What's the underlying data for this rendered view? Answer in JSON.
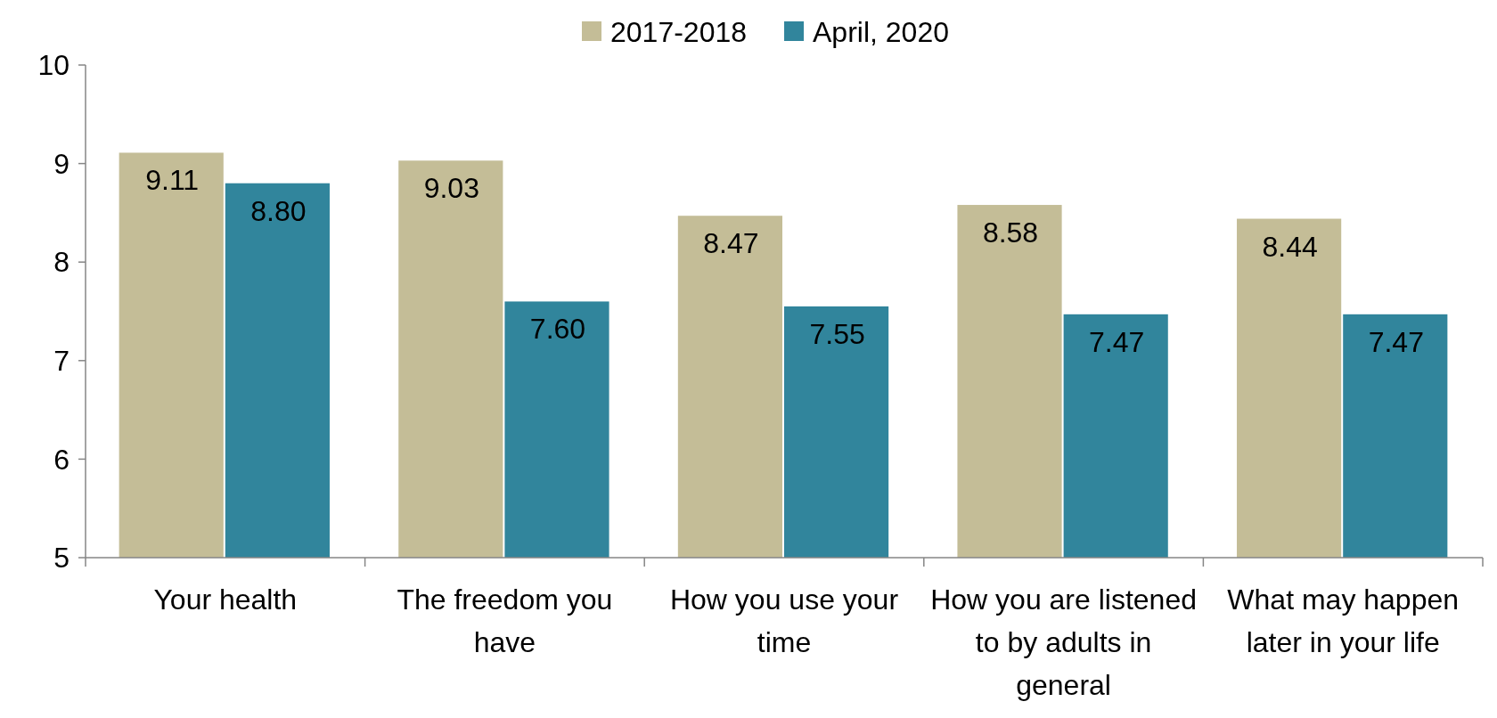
{
  "chart_data": {
    "type": "bar",
    "categories": [
      "Your health",
      "The freedom you have",
      "How you use your time",
      "How you are listened to by adults in general",
      "What may happen later in your life"
    ],
    "series": [
      {
        "name": "2017-2018",
        "color": "#c4bd97",
        "values": [
          9.11,
          9.03,
          8.47,
          8.58,
          8.44
        ],
        "value_labels": [
          "9.11",
          "9.03",
          "8.47",
          "8.58",
          "8.44"
        ]
      },
      {
        "name": "April, 2020",
        "color": "#31859c",
        "values": [
          8.8,
          7.6,
          7.55,
          7.47,
          7.47
        ],
        "value_labels": [
          "8.80",
          "7.60",
          "7.55",
          "7.47",
          "7.47"
        ]
      }
    ],
    "ylim": [
      5,
      10
    ],
    "yticks": [
      5,
      6,
      7,
      8,
      9,
      10
    ],
    "legend": "top",
    "grid": false
  }
}
